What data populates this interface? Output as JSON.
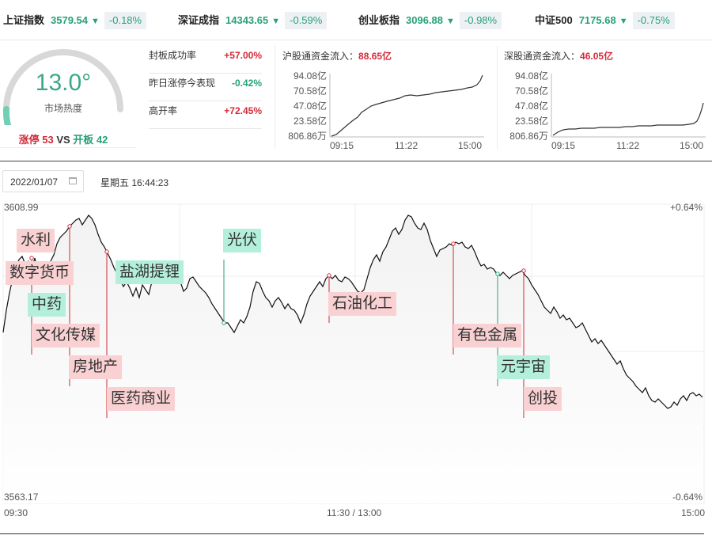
{
  "indices": [
    {
      "name": "上证指数",
      "value": "3579.54",
      "change": "-0.18%"
    },
    {
      "name": "深证成指",
      "value": "14343.65",
      "change": "-0.59%"
    },
    {
      "name": "创业板指",
      "value": "3096.88",
      "change": "-0.98%"
    },
    {
      "name": "中证500",
      "value": "7175.68",
      "change": "-0.75%"
    }
  ],
  "arrow": "▼",
  "gauge": {
    "value": "13.0°",
    "level": 0.13,
    "label": "市场热度",
    "limit_up_label": "涨停",
    "limit_up_count": "53",
    "vs": "VS",
    "open_label": "开板",
    "open_count": "42"
  },
  "stats": [
    {
      "label": "封板成功率",
      "value": "+57.00%",
      "tone": "red"
    },
    {
      "label": "昨日涨停今表现",
      "value": "-0.42%",
      "tone": "green"
    },
    {
      "label": "高开率",
      "value": "+72.45%",
      "tone": "red"
    }
  ],
  "flows": [
    {
      "title": "沪股通资金流入：",
      "amount": "88.65亿",
      "yticks": [
        "94.08亿",
        "70.58亿",
        "47.08亿",
        "23.58亿",
        "806.86万"
      ],
      "xticks": [
        "09:15",
        "11:22",
        "15:00"
      ]
    },
    {
      "title": "深股通资金流入：",
      "amount": "46.05亿",
      "yticks": [
        "94.08亿",
        "70.58亿",
        "47.08亿",
        "23.58亿",
        "806.86万"
      ],
      "xticks": [
        "09:15",
        "11:22",
        "15:00"
      ]
    }
  ],
  "date": "2022/01/07",
  "clock": "星期五 16:44:23",
  "chart_data": {
    "type": "line",
    "y_max_label": "3608.99",
    "y_min_label": "3563.17",
    "pct_max_label": "+0.64%",
    "pct_min_label": "-0.64%",
    "x_labels": [
      "09:30",
      "11:30 / 13:00",
      "15:00"
    ],
    "annotations": [
      {
        "label": "水利",
        "direction": "up"
      },
      {
        "label": "数字货币",
        "direction": "up"
      },
      {
        "label": "中药",
        "direction": "down"
      },
      {
        "label": "文化传媒",
        "direction": "up"
      },
      {
        "label": "房地产",
        "direction": "up"
      },
      {
        "label": "医药商业",
        "direction": "up"
      },
      {
        "label": "盐湖提锂",
        "direction": "down"
      },
      {
        "label": "光伏",
        "direction": "down"
      },
      {
        "label": "石油化工",
        "direction": "up"
      },
      {
        "label": "有色金属",
        "direction": "up"
      },
      {
        "label": "元宇宙",
        "direction": "down"
      },
      {
        "label": "创投",
        "direction": "up"
      }
    ]
  }
}
